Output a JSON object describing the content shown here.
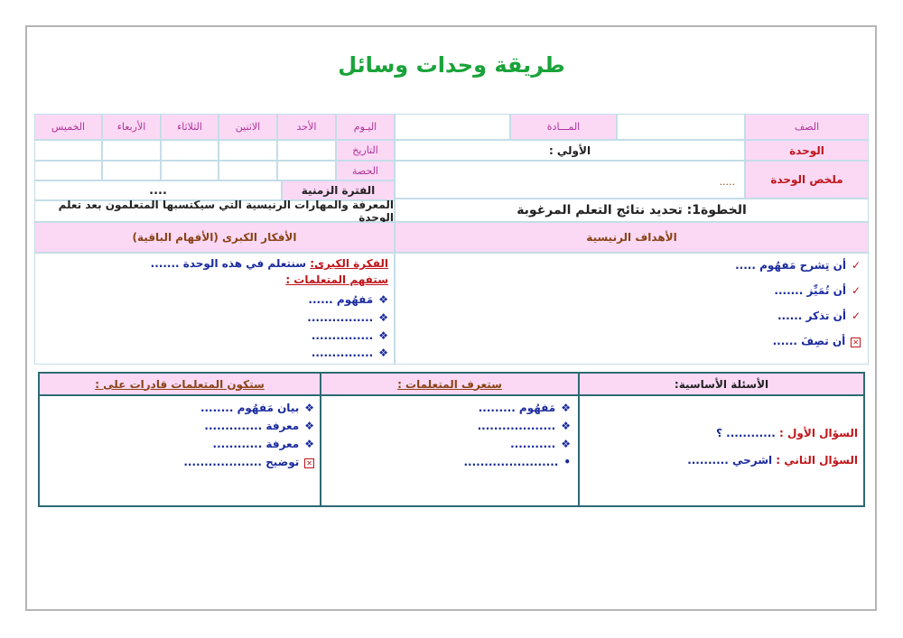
{
  "title": "طريقة وحدات وسائل",
  "header": {
    "grade": "الصف",
    "subject": "المـــادة",
    "unit": "الوحدة",
    "unit_value": "الأولي :",
    "summary": "ملخص الوحدة",
    "summary_value": ".....",
    "step": "الخطوة1: تحديد نتائج التعلم المرغوبة",
    "goals": "الأهداف الرنيسية"
  },
  "schedule": {
    "day": "اليـوم",
    "days": [
      "الأحد",
      "الاثنين",
      "الثلاثاء",
      "الأربعاء",
      "الخميس"
    ],
    "date": "التاريخ",
    "period": "الحصة",
    "duration": "الفترة الزمنية",
    "duration_value": "....",
    "knowledge": "المعرفة والمهارات الرنيسية التي سيكتسبها المتعلمون بعد تعلم الوحدة",
    "big_ideas": "الأفكار الكبرى (الأفهام الباقية)"
  },
  "objectives": [
    {
      "icon": "check",
      "text": "أن تِشرح مَفهُوم ....."
    },
    {
      "icon": "check",
      "text": "أن تُمَيِّز ......."
    },
    {
      "icon": "check",
      "text": "أن تذكر ......"
    },
    {
      "icon": "x-box",
      "text": "أن تصِفَ ......"
    }
  ],
  "big_idea": {
    "label": "الفكرة الكبرى:",
    "text": " سنتعلم في هذه الوحدة .......",
    "understand": "ستفهم المتعلمات :",
    "items": [
      "مَفهُوم ......",
      "................",
      "...............",
      "..............."
    ]
  },
  "bottom": {
    "questions_header": "الأسئلة الأساسية:",
    "know_header": "ستعرف المتعلمات :",
    "able_header": "ستكون المتعلمات قادرات على :",
    "q1_label": "السؤال الأول :",
    "q1_text": " ............ ؟",
    "q2_label": "السؤال الثاني :",
    "q2_text": " اشرحي ..........",
    "know_items": [
      "مَفهُوم .........",
      "...................",
      "...........",
      "......................."
    ],
    "able_items": [
      "بيان مَفهُوم ........",
      "معرفة ..............",
      "معرفة ............",
      "توضيح ..................."
    ]
  }
}
